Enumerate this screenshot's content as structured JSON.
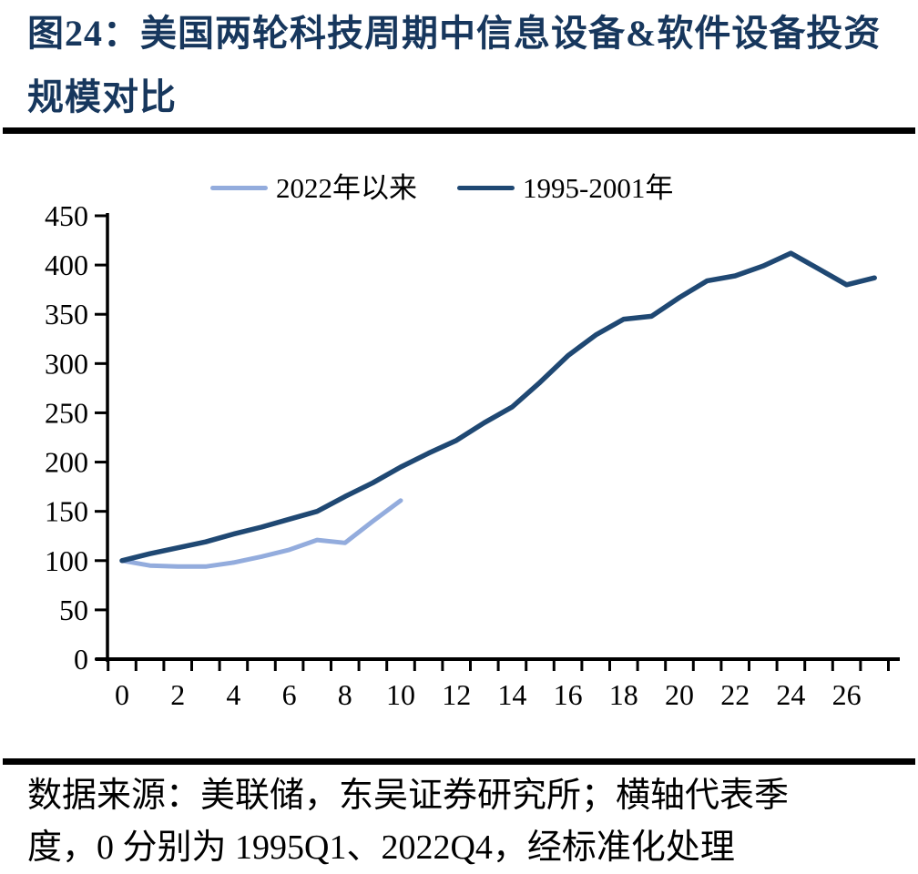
{
  "figure": {
    "title": "图24：美国两轮科技周期中信息设备&软件设备投资规模对比",
    "source_note": "数据来源：美联储，东吴证券研究所；横轴代表季度，0 分别为 1995Q1、2022Q4，经标准化处理"
  },
  "colors": {
    "title_navy": "#17375D",
    "axis_black": "#000000",
    "rule_black": "#000000",
    "series_2022_light_blue": "#93ACDD",
    "series_1995_dark_navy": "#1F4873"
  },
  "chart_data": {
    "type": "line",
    "title": "",
    "xlabel": "",
    "ylabel": "",
    "grid": false,
    "legend_position": "top",
    "ylim": [
      0,
      450
    ],
    "y_ticks": [
      0,
      50,
      100,
      150,
      200,
      250,
      300,
      350,
      400,
      450
    ],
    "x_tick_labels": [
      0,
      2,
      4,
      6,
      8,
      10,
      12,
      14,
      16,
      18,
      20,
      22,
      24,
      26
    ],
    "categories": [
      0,
      1,
      2,
      3,
      4,
      5,
      6,
      7,
      8,
      9,
      10,
      11,
      12,
      13,
      14,
      15,
      16,
      17,
      18,
      19,
      20,
      21,
      22,
      23,
      24,
      25,
      26,
      27
    ],
    "series": [
      {
        "name": "2022年以来",
        "color": "#93ACDD",
        "values": [
          100,
          95,
          94,
          94,
          98,
          104,
          111,
          121,
          118,
          140,
          161
        ]
      },
      {
        "name": "1995-2001年",
        "color": "#1F4873",
        "values": [
          100,
          107,
          113,
          119,
          127,
          134,
          142,
          150,
          165,
          179,
          195,
          209,
          222,
          240,
          256,
          281,
          308,
          329,
          345,
          348,
          367,
          384,
          389,
          399,
          412,
          396,
          380,
          387
        ]
      }
    ]
  }
}
